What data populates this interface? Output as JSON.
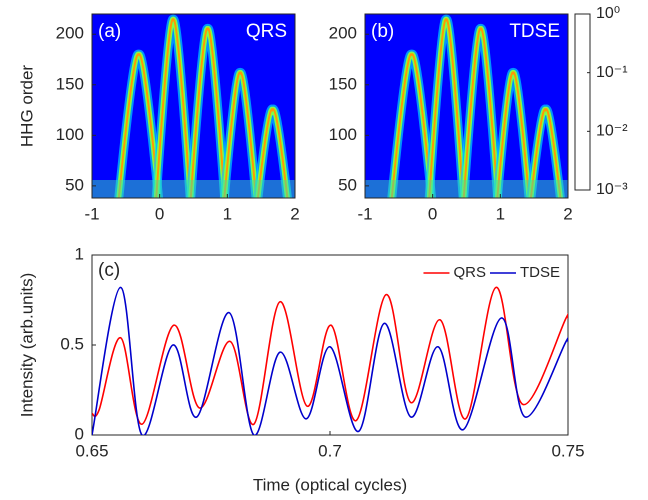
{
  "chart_data": [
    {
      "type": "heatmap",
      "label": "(a)",
      "annotation": "QRS",
      "ylabel": "HHG order",
      "xlim": [
        -1,
        2
      ],
      "xticks": [
        -1,
        0,
        1,
        2
      ],
      "ylim": [
        38,
        220
      ],
      "yticks": [
        50,
        100,
        150,
        200
      ]
    },
    {
      "type": "heatmap",
      "label": "(b)",
      "annotation": "TDSE",
      "xlim": [
        -1,
        2
      ],
      "xticks": [
        -1,
        0,
        1,
        2
      ],
      "ylim": [
        38,
        220
      ],
      "yticks": [
        50,
        100,
        150,
        200
      ],
      "colorbar": {
        "scale": "log",
        "lim": [
          0.001,
          1
        ],
        "ticks": [
          {
            "value": 1,
            "label": "10⁰"
          },
          {
            "value": 0.1,
            "label": "10⁻¹"
          },
          {
            "value": 0.01,
            "label": "10⁻²"
          },
          {
            "value": 0.001,
            "label": "10⁻³"
          }
        ]
      }
    },
    {
      "type": "line",
      "label": "(c)",
      "xlabel": "Time (optical cycles)",
      "ylabel": "Intensity (arb.units)",
      "xlim": [
        0.65,
        0.75
      ],
      "xticks": [
        0.65,
        0.7,
        0.75
      ],
      "ylim": [
        0,
        1
      ],
      "yticks": [
        0,
        0.5,
        1
      ],
      "legend": "top-right",
      "series": [
        {
          "name": "QRS",
          "color": "#ff0000",
          "x": [
            0.65,
            0.6515,
            0.656,
            0.6605,
            0.6672,
            0.6726,
            0.679,
            0.684,
            0.6895,
            0.6952,
            0.7002,
            0.7055,
            0.7118,
            0.717,
            0.7231,
            0.7285,
            0.7349,
            0.7405,
            0.7496,
            0.75
          ],
          "values": [
            0.12,
            0.14,
            0.54,
            0.06,
            0.61,
            0.15,
            0.52,
            0.06,
            0.74,
            0.16,
            0.61,
            0.08,
            0.78,
            0.18,
            0.64,
            0.09,
            0.82,
            0.17,
            0.65,
            0.65
          ]
        },
        {
          "name": "TDSE",
          "color": "#0000cc",
          "x": [
            0.65,
            0.656,
            0.6605,
            0.667,
            0.672,
            0.6788,
            0.684,
            0.6895,
            0.695,
            0.7,
            0.706,
            0.7114,
            0.717,
            0.7227,
            0.728,
            0.736,
            0.741,
            0.7496,
            0.75
          ],
          "values": [
            0.0,
            0.82,
            0.0,
            0.5,
            0.1,
            0.68,
            0.0,
            0.46,
            0.09,
            0.49,
            0.02,
            0.62,
            0.1,
            0.49,
            0.03,
            0.65,
            0.1,
            0.52,
            0.52
          ]
        }
      ]
    }
  ]
}
